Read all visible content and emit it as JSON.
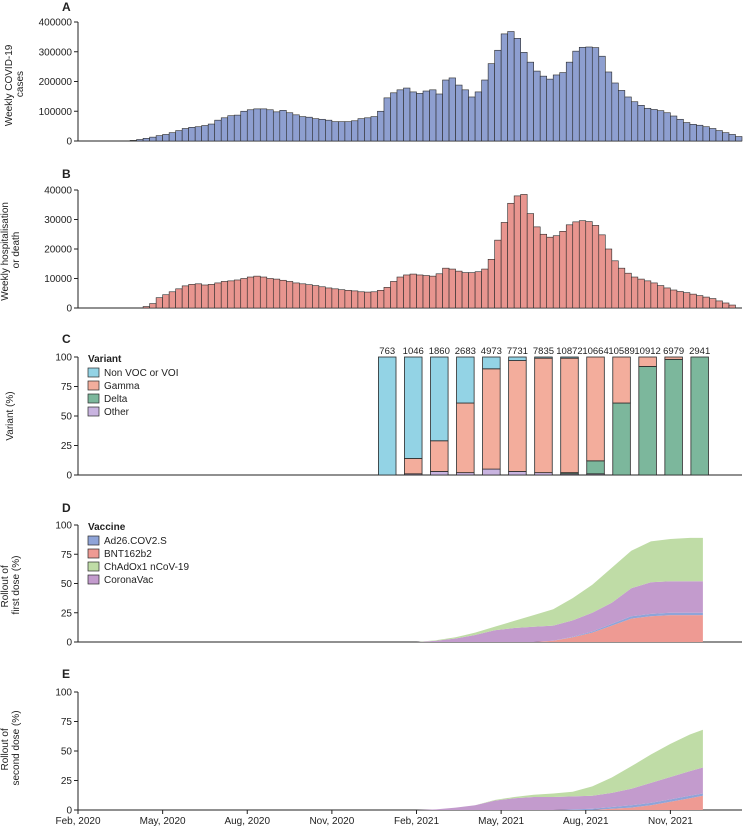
{
  "chart_data": [
    {
      "panel": "A",
      "type": "bar",
      "ylabel": "Weekly COVID-19 cases",
      "ylabel_lines": [
        "Weekly COVID-19",
        "cases"
      ],
      "ylim": [
        0,
        400000
      ],
      "yticks": [
        0,
        100000,
        200000,
        300000,
        400000
      ],
      "ytick_labels": [
        "0",
        "100000",
        "200000",
        "300000",
        "400000"
      ],
      "color": "#8e9fd0",
      "values": [
        0,
        0,
        0,
        0,
        0,
        0,
        0,
        0,
        2000,
        5000,
        9000,
        13000,
        18000,
        22000,
        28000,
        35000,
        42000,
        46000,
        48000,
        52000,
        57000,
        70000,
        78000,
        85000,
        87000,
        100000,
        105000,
        108000,
        108000,
        105000,
        98000,
        103000,
        95000,
        88000,
        82000,
        80000,
        75000,
        73000,
        70000,
        65000,
        65000,
        65000,
        68000,
        75000,
        78000,
        82000,
        100000,
        145000,
        162000,
        172000,
        178000,
        165000,
        160000,
        168000,
        172000,
        158000,
        205000,
        212000,
        188000,
        172000,
        148000,
        165000,
        205000,
        260000,
        305000,
        360000,
        368000,
        345000,
        298000,
        265000,
        235000,
        218000,
        208000,
        222000,
        230000,
        265000,
        302000,
        315000,
        316000,
        314000,
        285000,
        232000,
        195000,
        170000,
        148000,
        132000,
        120000,
        110000,
        106000,
        102000,
        95000,
        84000,
        73000,
        62000,
        56000,
        53000,
        48000,
        42000,
        35000,
        28000,
        22000,
        15000
      ]
    },
    {
      "panel": "B",
      "type": "bar",
      "ylabel": "Weekly hospitalisation or death",
      "ylabel_lines": [
        "Weekly hospitalisation",
        "or death"
      ],
      "ylim": [
        0,
        40000
      ],
      "yticks": [
        0,
        10000,
        20000,
        30000,
        40000
      ],
      "ytick_labels": [
        "0",
        "10000",
        "20000",
        "30000",
        "40000"
      ],
      "color": "#e8958f",
      "values": [
        0,
        0,
        0,
        0,
        0,
        0,
        0,
        0,
        0,
        0,
        500,
        1500,
        3500,
        4500,
        5500,
        6500,
        7500,
        8000,
        8200,
        7800,
        8000,
        8500,
        9000,
        9200,
        9500,
        10000,
        10500,
        10800,
        10500,
        10000,
        9800,
        9400,
        9000,
        8500,
        8200,
        7900,
        7600,
        7200,
        6800,
        6500,
        6200,
        6000,
        5800,
        5500,
        5400,
        5500,
        6000,
        7000,
        9000,
        10500,
        11200,
        11500,
        11200,
        11000,
        10800,
        11600,
        13500,
        13200,
        12500,
        12000,
        12000,
        12300,
        13200,
        16500,
        23000,
        29000,
        35500,
        38000,
        38500,
        32000,
        27500,
        25000,
        24000,
        24500,
        26000,
        28200,
        29200,
        29600,
        29300,
        28000,
        24800,
        20000,
        16000,
        13500,
        11800,
        10500,
        9800,
        9200,
        8500,
        7600,
        6800,
        6100,
        5600,
        5200,
        4700,
        4200,
        3700,
        3200,
        2400,
        1700,
        1000
      ]
    },
    {
      "panel": "C",
      "type": "bar",
      "stacked": true,
      "ylabel": "Variant (%)",
      "ylim": [
        0,
        100
      ],
      "yticks": [
        0,
        25,
        50,
        75,
        100
      ],
      "ytick_labels": [
        "0",
        "25",
        "50",
        "75",
        "100"
      ],
      "legend_title": "Variant",
      "legend": [
        {
          "name": "Non VOC or VOI",
          "color": "#93d3e5"
        },
        {
          "name": "Gamma",
          "color": "#f3ad9c"
        },
        {
          "name": "Delta",
          "color": "#7cb79c"
        },
        {
          "name": "Other",
          "color": "#c9b4e0"
        }
      ],
      "counts": [
        "763",
        "1046",
        "1860",
        "2683",
        "4973",
        "7731",
        "7835",
        "10872",
        "10664",
        "10589",
        "10912",
        "6979",
        "2941"
      ],
      "bars": [
        {
          "week": 47,
          "other": 0,
          "delta": 0,
          "gamma": 0,
          "non": 100
        },
        {
          "week": 51,
          "other": 1,
          "delta": 0,
          "gamma": 13,
          "non": 86
        },
        {
          "week": 55,
          "other": 3,
          "delta": 0,
          "gamma": 26,
          "non": 71
        },
        {
          "week": 59,
          "other": 2,
          "delta": 0,
          "gamma": 59,
          "non": 39
        },
        {
          "week": 63,
          "other": 5,
          "delta": 0,
          "gamma": 85,
          "non": 10
        },
        {
          "week": 67,
          "other": 3,
          "delta": 0,
          "gamma": 94,
          "non": 3
        },
        {
          "week": 71,
          "other": 2,
          "delta": 0,
          "gamma": 97,
          "non": 1
        },
        {
          "week": 75,
          "other": 1,
          "delta": 1,
          "gamma": 97,
          "non": 1
        },
        {
          "week": 79,
          "other": 1,
          "delta": 11,
          "gamma": 88,
          "non": 0
        },
        {
          "week": 83,
          "other": 0,
          "delta": 61,
          "gamma": 39,
          "non": 0
        },
        {
          "week": 87,
          "other": 0,
          "delta": 92,
          "gamma": 8,
          "non": 0
        },
        {
          "week": 91,
          "other": 0,
          "delta": 98,
          "gamma": 2,
          "non": 0
        },
        {
          "week": 95,
          "other": 0,
          "delta": 100,
          "gamma": 0,
          "non": 0
        }
      ]
    },
    {
      "panel": "D",
      "type": "area",
      "stacked": true,
      "ylabel": "Rollout of first dose (%)",
      "ylabel_lines": [
        "Rollout of",
        "first dose (%)"
      ],
      "ylim": [
        0,
        100
      ],
      "yticks": [
        0,
        25,
        50,
        75,
        100
      ],
      "ytick_labels": [
        "0",
        "25",
        "50",
        "75",
        "100"
      ],
      "legend_title": "Vaccine",
      "legend": [
        {
          "name": "Ad26.COV2.S",
          "color": "#8fa4d8"
        },
        {
          "name": "BNT162b2",
          "color": "#ee9a93"
        },
        {
          "name": "ChAdOx1 nCoV-19",
          "color": "#bfdca6"
        },
        {
          "name": "CoronaVac",
          "color": "#c39bcd"
        }
      ],
      "weeks": [
        52,
        55,
        58,
        61,
        64,
        67,
        70,
        73,
        76,
        79,
        82,
        85,
        88,
        91,
        94,
        96
      ],
      "bnt162b2": [
        0,
        0,
        0,
        0,
        0,
        0,
        0,
        1,
        4,
        8,
        14,
        20,
        22,
        23,
        23,
        23
      ],
      "ad26": [
        0,
        0,
        0,
        0,
        0,
        0,
        0,
        0,
        0.5,
        1,
        1.5,
        2,
        2,
        2,
        2,
        2
      ],
      "coronavac": [
        0,
        1,
        3,
        6,
        10,
        12,
        13,
        13,
        14,
        16,
        18,
        24,
        27,
        27,
        27,
        27
      ],
      "chadox1": [
        0,
        0.5,
        1,
        2,
        3,
        6,
        10,
        14,
        19,
        24,
        30,
        32,
        35,
        36,
        37,
        37
      ]
    },
    {
      "panel": "E",
      "type": "area",
      "stacked": true,
      "ylabel": "Rollout of second dose (%)",
      "ylabel_lines": [
        "Rollout of",
        "second dose (%)"
      ],
      "ylim": [
        0,
        100
      ],
      "yticks": [
        0,
        25,
        50,
        75,
        100
      ],
      "ytick_labels": [
        "0",
        "25",
        "50",
        "75",
        "100"
      ],
      "weeks": [
        52,
        55,
        58,
        61,
        64,
        67,
        70,
        73,
        76,
        79,
        82,
        85,
        88,
        91,
        94,
        96
      ],
      "bnt162b2": [
        0,
        0,
        0,
        0,
        0,
        0,
        0,
        0,
        0,
        0,
        1,
        2,
        4,
        7,
        10,
        12
      ],
      "ad26": [
        0,
        0,
        0,
        0,
        0,
        0,
        0,
        0,
        0.5,
        1,
        1.5,
        2,
        2,
        2,
        2,
        2
      ],
      "coronavac": [
        0,
        0.5,
        2,
        4,
        8,
        10,
        11,
        11,
        11,
        11,
        12,
        14,
        17,
        19,
        21,
        22
      ],
      "chadox1": [
        0,
        0,
        0,
        0,
        0.5,
        1,
        2,
        3,
        4,
        8,
        13,
        19,
        24,
        28,
        31,
        32
      ]
    }
  ],
  "x_axis": {
    "n_weeks": 102,
    "labels": [
      "Feb, 2020",
      "May, 2020",
      "Aug, 2020",
      "Nov, 2020",
      "Feb, 2021",
      "May, 2021",
      "Aug, 2021",
      "Nov, 2021"
    ],
    "label_weeks": [
      0,
      13,
      26,
      39,
      52,
      65,
      78,
      91
    ]
  }
}
